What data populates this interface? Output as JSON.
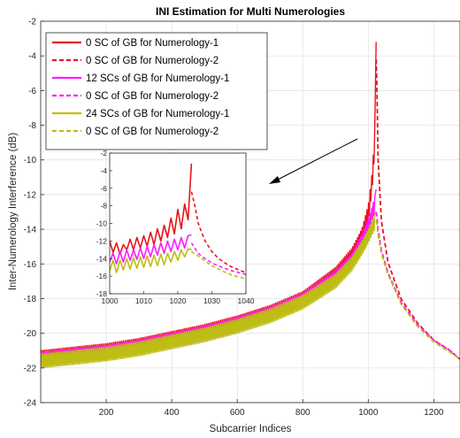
{
  "chart_data": [
    {
      "type": "line",
      "title": "INI Estimation for Multi Numerologies",
      "xlabel": "Subcarrier Indices",
      "ylabel": "Inter-Numerology Interference (dB)",
      "xlim": [
        0,
        1280
      ],
      "ylim": [
        -24,
        -2
      ],
      "xticks": [
        200,
        400,
        600,
        800,
        1000,
        1200
      ],
      "yticks": [
        -24,
        -22,
        -20,
        -18,
        -16,
        -14,
        -12,
        -10,
        -8,
        -6,
        -4,
        -2
      ],
      "grid": true,
      "legend_position": "top-left",
      "series": [
        {
          "name": "0 SC of GB for Numerology-1",
          "color": "#e8141c",
          "style": "solid",
          "x": [
            0,
            100,
            200,
            300,
            400,
            500,
            600,
            700,
            800,
            900,
            950,
            980,
            1000,
            1010,
            1015,
            1020,
            1024
          ],
          "y_low": [
            -21.8,
            -21.6,
            -21.4,
            -21.1,
            -20.7,
            -20.3,
            -19.8,
            -19.2,
            -18.4,
            -17.0,
            -15.9,
            -14.6,
            -13.8,
            -12.0,
            -11.0,
            -9.5,
            -3.2
          ],
          "y_high": [
            -21.0,
            -20.8,
            -20.6,
            -20.3,
            -19.9,
            -19.5,
            -19.0,
            -18.4,
            -17.6,
            -16.2,
            -15.1,
            -14.0,
            -12.6,
            -11.0,
            -9.8,
            -8.0,
            -3.2
          ]
        },
        {
          "name": "0 SC of GB for Numerology-2",
          "color": "#e8141c",
          "style": "dashed",
          "x": [
            1024,
            1025,
            1030,
            1040,
            1060,
            1100,
            1150,
            1200,
            1250,
            1280
          ],
          "y": [
            -4.2,
            -4.2,
            -10.0,
            -13.5,
            -15.9,
            -18.0,
            -19.4,
            -20.4,
            -21.0,
            -21.5
          ]
        },
        {
          "name": "12 SCs of GB for Numerology-1",
          "color": "#ff1aff",
          "style": "solid",
          "x": [
            0,
            100,
            200,
            300,
            400,
            500,
            600,
            700,
            800,
            900,
            950,
            980,
            1000,
            1010,
            1020,
            1024
          ],
          "y_low": [
            -21.9,
            -21.7,
            -21.5,
            -21.2,
            -20.8,
            -20.4,
            -19.9,
            -19.3,
            -18.5,
            -17.2,
            -16.2,
            -15.1,
            -14.2,
            -13.6,
            -13.1,
            -12.5
          ],
          "y_high": [
            -21.1,
            -20.9,
            -20.7,
            -20.4,
            -20.0,
            -19.6,
            -19.1,
            -18.5,
            -17.7,
            -16.4,
            -15.4,
            -14.3,
            -13.4,
            -12.8,
            -12.1,
            -11.7
          ]
        },
        {
          "name": "0 SC of GB for Numerology-2",
          "color": "#ff1aff",
          "style": "dashed",
          "x": [
            1024,
            1025,
            1030,
            1040,
            1060,
            1100,
            1150,
            1200,
            1250,
            1280
          ],
          "y": [
            -13.0,
            -13.0,
            -14.0,
            -15.2,
            -16.5,
            -18.2,
            -19.5,
            -20.4,
            -21.0,
            -21.5
          ]
        },
        {
          "name": "24 SCs of GB for Numerology-1",
          "color": "#bdbd14",
          "style": "solid",
          "x": [
            0,
            100,
            200,
            300,
            400,
            500,
            600,
            700,
            800,
            900,
            950,
            980,
            1000,
            1010,
            1020,
            1024
          ],
          "y_low": [
            -22.0,
            -21.8,
            -21.6,
            -21.3,
            -20.9,
            -20.5,
            -20.0,
            -19.4,
            -18.6,
            -17.4,
            -16.4,
            -15.5,
            -14.8,
            -14.4,
            -14.0,
            -13.5
          ],
          "y_high": [
            -21.2,
            -21.0,
            -20.8,
            -20.5,
            -20.1,
            -19.7,
            -19.2,
            -18.6,
            -17.8,
            -16.6,
            -15.6,
            -14.7,
            -14.0,
            -13.6,
            -13.2,
            -13.0
          ]
        },
        {
          "name": "0 SC of GB for Numerology-2",
          "color": "#bdbd14",
          "style": "dashed",
          "x": [
            1024,
            1025,
            1030,
            1040,
            1060,
            1100,
            1150,
            1200,
            1250,
            1280
          ],
          "y": [
            -13.5,
            -13.5,
            -14.3,
            -15.4,
            -16.6,
            -18.3,
            -19.6,
            -20.5,
            -21.1,
            -21.5
          ]
        }
      ]
    },
    {
      "type": "line",
      "title": "",
      "xlim": [
        1000,
        1040
      ],
      "ylim": [
        -18,
        -2
      ],
      "xticks": [
        1000,
        1010,
        1020,
        1030,
        1040
      ],
      "yticks": [
        -18,
        -16,
        -14,
        -12,
        -10,
        -8,
        -6,
        -4,
        -2
      ],
      "grid": false,
      "series": [
        {
          "color": "#e8141c",
          "style": "solid",
          "x": [
            1000,
            1001,
            1002,
            1003,
            1004,
            1005,
            1006,
            1007,
            1008,
            1009,
            1010,
            1011,
            1012,
            1013,
            1014,
            1015,
            1016,
            1017,
            1018,
            1019,
            1020,
            1021,
            1022,
            1023,
            1024
          ],
          "y": [
            -12.0,
            -13.3,
            -12.2,
            -13.5,
            -12.4,
            -13.0,
            -11.8,
            -13.0,
            -11.6,
            -12.8,
            -11.4,
            -12.6,
            -11.0,
            -12.4,
            -10.6,
            -12.0,
            -10.2,
            -11.6,
            -9.4,
            -11.2,
            -8.4,
            -10.6,
            -7.8,
            -9.6,
            -3.2
          ]
        },
        {
          "color": "#e8141c",
          "style": "dashed",
          "x": [
            1024,
            1025,
            1026,
            1028,
            1030,
            1032,
            1035,
            1038,
            1040
          ],
          "y": [
            -6.4,
            -8.0,
            -10.0,
            -12.0,
            -13.2,
            -14.0,
            -14.8,
            -15.3,
            -15.6
          ]
        },
        {
          "color": "#ff1aff",
          "style": "solid",
          "x": [
            1000,
            1001,
            1002,
            1003,
            1004,
            1005,
            1006,
            1007,
            1008,
            1009,
            1010,
            1011,
            1012,
            1013,
            1014,
            1015,
            1016,
            1017,
            1018,
            1019,
            1020,
            1021,
            1022,
            1023,
            1024
          ],
          "y": [
            -14.4,
            -13.4,
            -14.6,
            -13.2,
            -14.4,
            -13.0,
            -14.2,
            -13.0,
            -14.1,
            -12.8,
            -14.0,
            -12.6,
            -13.8,
            -12.4,
            -13.6,
            -12.2,
            -13.4,
            -12.0,
            -13.2,
            -11.8,
            -13.0,
            -11.6,
            -12.8,
            -11.4,
            -11.3
          ]
        },
        {
          "color": "#ff1aff",
          "style": "dashed",
          "x": [
            1024,
            1026,
            1028,
            1030,
            1033,
            1036,
            1040
          ],
          "y": [
            -12.2,
            -13.4,
            -14.0,
            -14.5,
            -15.0,
            -15.4,
            -15.8
          ]
        },
        {
          "color": "#bdbd14",
          "style": "solid",
          "x": [
            1000,
            1001,
            1002,
            1003,
            1004,
            1005,
            1006,
            1007,
            1008,
            1009,
            1010,
            1011,
            1012,
            1013,
            1014,
            1015,
            1016,
            1017,
            1018,
            1019,
            1020,
            1021,
            1022,
            1023,
            1024
          ],
          "y": [
            -15.4,
            -14.2,
            -15.6,
            -14.2,
            -15.3,
            -14.0,
            -15.2,
            -13.9,
            -15.1,
            -13.8,
            -15.0,
            -13.7,
            -14.9,
            -13.6,
            -14.8,
            -13.5,
            -14.7,
            -13.4,
            -14.4,
            -13.2,
            -14.2,
            -13.0,
            -13.8,
            -12.9,
            -13.0
          ]
        },
        {
          "color": "#bdbd14",
          "style": "dashed",
          "x": [
            1024,
            1026,
            1028,
            1030,
            1033,
            1036,
            1040
          ],
          "y": [
            -13.2,
            -13.7,
            -14.3,
            -14.8,
            -15.4,
            -15.9,
            -16.3
          ]
        }
      ]
    }
  ]
}
